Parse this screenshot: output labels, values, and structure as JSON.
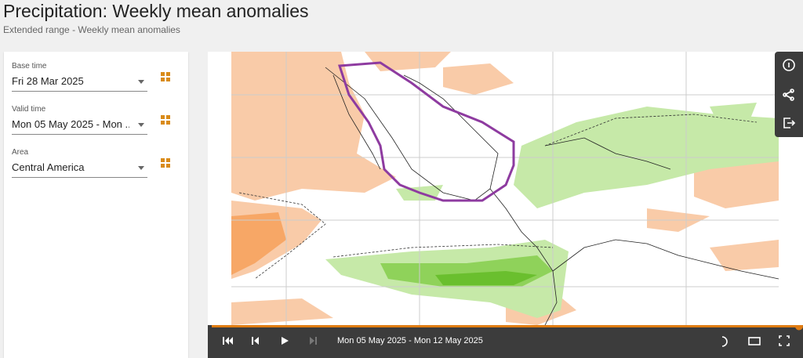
{
  "header": {
    "title": "Precipitation: Weekly mean anomalies",
    "subtitle": "Extended range - Weekly mean anomalies"
  },
  "fields": [
    {
      "label": "Base time",
      "value": "Fri 28 Mar 2025"
    },
    {
      "label": "Valid time",
      "value": "Mon 05 May 2025 - Mon ..."
    },
    {
      "label": "Area",
      "value": "Central America"
    }
  ],
  "player": {
    "label": "Mon 05 May 2025 - Mon 12 May 2025"
  }
}
